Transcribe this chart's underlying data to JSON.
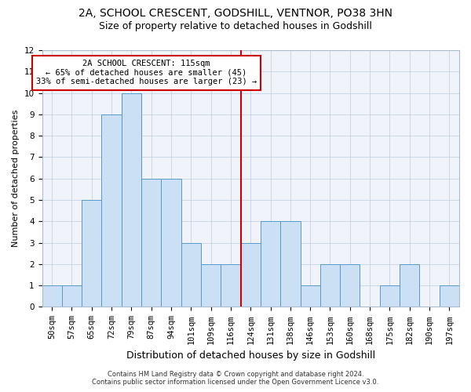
{
  "title": "2A, SCHOOL CRESCENT, GODSHILL, VENTNOR, PO38 3HN",
  "subtitle": "Size of property relative to detached houses in Godshill",
  "xlabel": "Distribution of detached houses by size in Godshill",
  "ylabel": "Number of detached properties",
  "footer_line1": "Contains HM Land Registry data © Crown copyright and database right 2024.",
  "footer_line2": "Contains public sector information licensed under the Open Government Licence v3.0.",
  "bin_labels": [
    "50sqm",
    "57sqm",
    "65sqm",
    "72sqm",
    "79sqm",
    "87sqm",
    "94sqm",
    "101sqm",
    "109sqm",
    "116sqm",
    "124sqm",
    "131sqm",
    "138sqm",
    "146sqm",
    "153sqm",
    "160sqm",
    "168sqm",
    "175sqm",
    "182sqm",
    "190sqm",
    "197sqm"
  ],
  "bin_values": [
    1,
    1,
    5,
    9,
    10,
    6,
    6,
    3,
    2,
    2,
    3,
    4,
    4,
    1,
    2,
    2,
    0,
    1,
    2,
    0,
    1
  ],
  "bar_color": "#cce0f5",
  "bar_edge_color": "#5599cc",
  "ref_line_color": "#cc0000",
  "ref_line_x": 9.5,
  "annotation_title": "2A SCHOOL CRESCENT: 115sqm",
  "annotation_line1": "← 65% of detached houses are smaller (45)",
  "annotation_line2": "33% of semi-detached houses are larger (23) →",
  "annotation_box_color": "#ffffff",
  "annotation_border_color": "#cc0000",
  "ylim": [
    0,
    12
  ],
  "yticks": [
    0,
    1,
    2,
    3,
    4,
    5,
    6,
    7,
    8,
    9,
    10,
    11,
    12
  ],
  "grid_color": "#bbccdd",
  "title_fontsize": 10,
  "subtitle_fontsize": 9,
  "ylabel_fontsize": 8,
  "xlabel_fontsize": 9,
  "tick_fontsize": 7.5,
  "annotation_fontsize": 7.5,
  "footer_fontsize": 6
}
